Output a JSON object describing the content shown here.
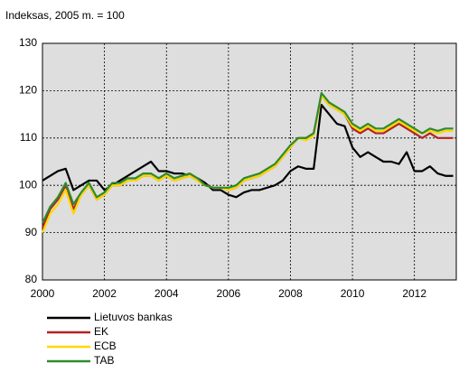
{
  "chart_data": {
    "type": "line",
    "y_label": "Indeksas, 2005 m. = 100",
    "x": [
      2000,
      2000.25,
      2000.5,
      2000.75,
      2001,
      2001.25,
      2001.5,
      2001.75,
      2002,
      2002.25,
      2002.5,
      2002.75,
      2003,
      2003.25,
      2003.5,
      2003.75,
      2004,
      2004.25,
      2004.5,
      2004.75,
      2005,
      2005.25,
      2005.5,
      2005.75,
      2006,
      2006.25,
      2006.5,
      2006.75,
      2007,
      2007.25,
      2007.5,
      2007.75,
      2008,
      2008.25,
      2008.5,
      2008.75,
      2009,
      2009.25,
      2009.5,
      2009.75,
      2010,
      2010.25,
      2010.5,
      2010.75,
      2011,
      2011.25,
      2011.5,
      2011.75,
      2012,
      2012.25,
      2012.5,
      2012.75,
      2013,
      2013.25
    ],
    "series": [
      {
        "name": "Lietuvos bankas",
        "color": "#000000",
        "values": [
          101,
          102,
          103,
          103.5,
          99,
          100,
          101,
          101,
          99,
          100,
          101,
          102,
          103,
          104,
          105,
          103,
          103,
          102.5,
          102.5,
          102,
          101.5,
          100.5,
          99,
          99,
          98,
          97.5,
          98.5,
          99,
          99,
          99.5,
          100,
          101,
          103,
          104,
          103.5,
          103.5,
          117,
          115,
          113,
          112.5,
          108,
          106,
          107,
          106,
          105,
          105,
          104.5,
          107,
          103,
          103,
          104,
          102.5,
          102,
          102
        ]
      },
      {
        "name": "EK",
        "color": "#b22222",
        "values": [
          91,
          95,
          97,
          100,
          95,
          98,
          100,
          97,
          98,
          100,
          100,
          101,
          101,
          102,
          102,
          101,
          102,
          101,
          101.5,
          102,
          101,
          100,
          99.5,
          99.5,
          99,
          99.5,
          101,
          101.5,
          102,
          103,
          104,
          106,
          108,
          110,
          110,
          111,
          119,
          117,
          116,
          115,
          112,
          111,
          112,
          111,
          111,
          112,
          113,
          112,
          111,
          110,
          111,
          110,
          110,
          110
        ]
      },
      {
        "name": "ECB",
        "color": "#ffd700",
        "values": [
          90,
          94,
          96,
          99,
          94,
          98,
          100,
          97,
          98,
          100,
          100,
          101,
          101,
          102,
          102,
          101,
          102,
          101,
          101.5,
          102,
          101,
          100,
          99.5,
          99.5,
          99,
          99.5,
          101,
          101.5,
          102,
          103,
          104,
          106,
          108,
          110,
          109.5,
          110.5,
          119,
          117,
          116,
          115,
          112.5,
          111.5,
          112.5,
          111.5,
          111.5,
          112.5,
          113.5,
          112.5,
          111.5,
          111,
          111.5,
          111,
          111.5,
          111.5
        ]
      },
      {
        "name": "TAB",
        "color": "#2e8b2e",
        "values": [
          92,
          95.5,
          97.5,
          100.5,
          96,
          98.5,
          100.5,
          97.5,
          98.5,
          100.5,
          100.5,
          101.5,
          101.5,
          102.5,
          102.5,
          101.5,
          102.5,
          101.5,
          102,
          102.5,
          101.5,
          100,
          99.5,
          99.5,
          99.5,
          100,
          101.5,
          102,
          102.5,
          103.5,
          104.5,
          106.5,
          108.5,
          110,
          110,
          111,
          119.5,
          117.5,
          116.5,
          115.5,
          113,
          112,
          113,
          112,
          112,
          113,
          114,
          113,
          112,
          111,
          112,
          111.5,
          112,
          112
        ]
      }
    ],
    "xlim": [
      2000,
      2013.35
    ],
    "xticks": [
      2000,
      2002,
      2004,
      2006,
      2008,
      2010,
      2012
    ],
    "ylim": [
      80,
      130
    ],
    "yticks": [
      80,
      90,
      100,
      110,
      120,
      130
    ],
    "grid": true,
    "legend": "bottom"
  }
}
